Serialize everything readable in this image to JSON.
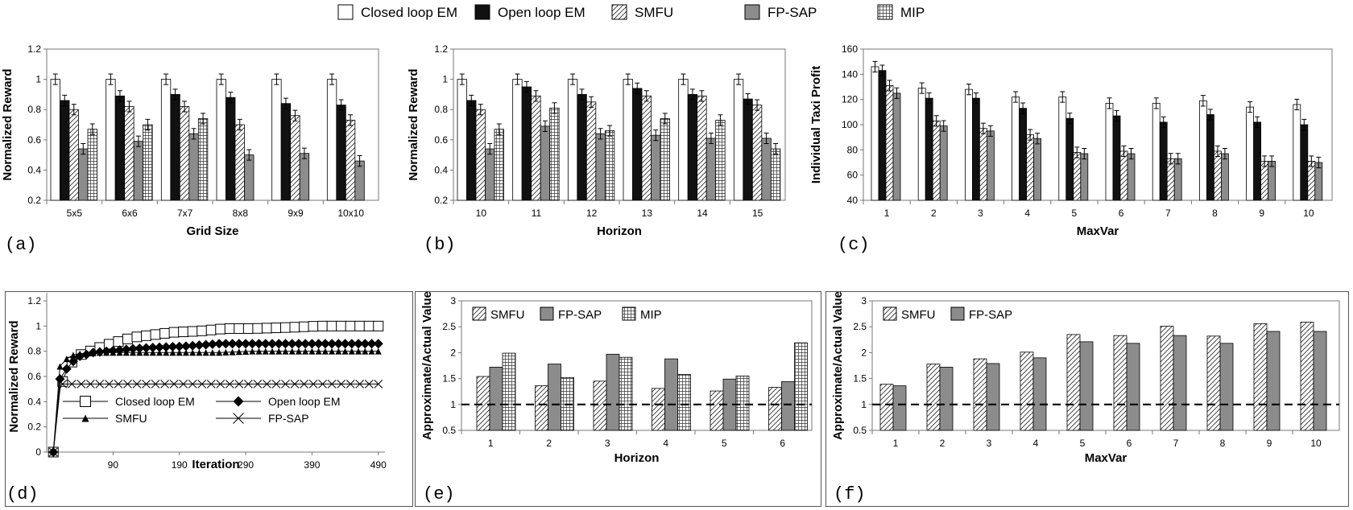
{
  "legend": {
    "items": [
      {
        "name": "Closed loop EM",
        "style": "white"
      },
      {
        "name": "Open loop EM",
        "style": "black"
      },
      {
        "name": "SMFU",
        "style": "hatch"
      },
      {
        "name": "FP-SAP",
        "style": "gray"
      },
      {
        "name": "MIP",
        "style": "grid"
      }
    ]
  },
  "colors": {
    "black": "#111111",
    "gray": "#8c8c8c",
    "white": "#ffffff",
    "axis": "#777777",
    "grid": "#bdbdbd"
  },
  "chart_data": [
    {
      "id": "a",
      "letter": "(a)",
      "type": "bar",
      "xlabel": "Grid Size",
      "ylabel": "Normalized Reward",
      "ylim": [
        0.2,
        1.2
      ],
      "yticks": [
        0.2,
        0.4,
        0.6,
        0.8,
        1,
        1.2
      ],
      "categories": [
        "5x5",
        "6x6",
        "7x7",
        "8x8",
        "9x9",
        "10x10"
      ],
      "error_bars": true,
      "series": [
        {
          "name": "Closed loop EM",
          "style": "white",
          "values": [
            1.0,
            1.0,
            1.0,
            1.0,
            1.0,
            1.0
          ]
        },
        {
          "name": "Open loop EM",
          "style": "black",
          "values": [
            0.86,
            0.89,
            0.9,
            0.88,
            0.84,
            0.83
          ]
        },
        {
          "name": "SMFU",
          "style": "hatch",
          "values": [
            0.8,
            0.82,
            0.82,
            0.7,
            0.76,
            0.73
          ]
        },
        {
          "name": "FP-SAP",
          "style": "gray",
          "values": [
            0.54,
            0.59,
            0.64,
            0.5,
            0.51,
            0.46
          ]
        },
        {
          "name": "MIP",
          "style": "grid",
          "values": [
            0.67,
            0.7,
            0.74,
            null,
            null,
            null
          ]
        }
      ]
    },
    {
      "id": "b",
      "letter": "(b)",
      "type": "bar",
      "xlabel": "Horizon",
      "ylabel": "Normalized Reward",
      "ylim": [
        0.2,
        1.2
      ],
      "yticks": [
        0.2,
        0.4,
        0.6,
        0.8,
        1,
        1.2
      ],
      "categories": [
        "10",
        "11",
        "12",
        "13",
        "14",
        "15"
      ],
      "error_bars": true,
      "series": [
        {
          "name": "Closed loop EM",
          "style": "white",
          "values": [
            1.0,
            1.0,
            1.0,
            1.0,
            1.0,
            1.0
          ]
        },
        {
          "name": "Open loop EM",
          "style": "black",
          "values": [
            0.86,
            0.95,
            0.9,
            0.94,
            0.9,
            0.87
          ]
        },
        {
          "name": "SMFU",
          "style": "hatch",
          "values": [
            0.8,
            0.89,
            0.85,
            0.89,
            0.89,
            0.83
          ]
        },
        {
          "name": "FP-SAP",
          "style": "gray",
          "values": [
            0.54,
            0.69,
            0.64,
            0.63,
            0.61,
            0.61
          ]
        },
        {
          "name": "MIP",
          "style": "grid",
          "values": [
            0.67,
            0.81,
            0.66,
            0.74,
            0.73,
            0.54
          ]
        }
      ]
    },
    {
      "id": "c",
      "letter": "(c)",
      "type": "bar",
      "xlabel": "MaxVar",
      "ylabel": "Individual Taxi Profit",
      "ylim": [
        40,
        160
      ],
      "yticks": [
        40,
        60,
        80,
        100,
        120,
        140,
        160
      ],
      "categories": [
        "1",
        "2",
        "3",
        "4",
        "5",
        "6",
        "7",
        "8",
        "9",
        "10"
      ],
      "error_bars": true,
      "series": [
        {
          "name": "Closed loop EM",
          "style": "white",
          "values": [
            146,
            129,
            128,
            122,
            122,
            117,
            117,
            119,
            114,
            116
          ]
        },
        {
          "name": "Open loop EM",
          "style": "black",
          "values": [
            143,
            121,
            121,
            113,
            105,
            107,
            102,
            108,
            102,
            100
          ]
        },
        {
          "name": "SMFU",
          "style": "hatch",
          "values": [
            131,
            103,
            97,
            92,
            78,
            79,
            73,
            79,
            71,
            71
          ]
        },
        {
          "name": "FP-SAP",
          "style": "gray",
          "values": [
            125,
            99,
            95,
            89,
            77,
            77,
            73,
            77,
            71,
            70
          ]
        }
      ]
    },
    {
      "id": "d",
      "letter": "(d)",
      "type": "line",
      "xlabel": "Iteration",
      "ylabel": "Normalized Reward",
      "ylim": [
        0,
        1.2
      ],
      "yticks": [
        0,
        0.2,
        0.4,
        0.6,
        0.8,
        1,
        1.2
      ],
      "xlim": [
        -10,
        500
      ],
      "xticks": [
        90,
        190,
        290,
        390,
        490
      ],
      "legend": [
        {
          "name": "Closed loop EM",
          "marker": "square"
        },
        {
          "name": "Open loop EM",
          "marker": "diamond"
        },
        {
          "name": "SMFU",
          "marker": "triangle"
        },
        {
          "name": "FP-SAP",
          "marker": "x"
        }
      ],
      "series": [
        {
          "name": "Closed loop EM",
          "marker": "square",
          "x": [
            0,
            10,
            20,
            30,
            40,
            60,
            80,
            100,
            120,
            150,
            180,
            220,
            260,
            300,
            360,
            400,
            450,
            490
          ],
          "y": [
            0,
            0.5,
            0.65,
            0.73,
            0.77,
            0.81,
            0.85,
            0.88,
            0.91,
            0.93,
            0.95,
            0.96,
            0.98,
            0.98,
            0.99,
            1.0,
            1.0,
            1.0
          ]
        },
        {
          "name": "Open loop EM",
          "marker": "diamond",
          "x": [
            0,
            10,
            20,
            30,
            40,
            60,
            80,
            100,
            120,
            150,
            200,
            250,
            300,
            350,
            400,
            450,
            490
          ],
          "y": [
            0,
            0.58,
            0.66,
            0.72,
            0.76,
            0.79,
            0.8,
            0.81,
            0.82,
            0.83,
            0.84,
            0.86,
            0.86,
            0.86,
            0.86,
            0.86,
            0.86
          ]
        },
        {
          "name": "SMFU",
          "marker": "triangle",
          "x": [
            0,
            10,
            20,
            30,
            40,
            60,
            80,
            100,
            150,
            200,
            250,
            300,
            350,
            400,
            450,
            490
          ],
          "y": [
            0,
            0.68,
            0.74,
            0.77,
            0.78,
            0.79,
            0.79,
            0.79,
            0.79,
            0.79,
            0.79,
            0.8,
            0.8,
            0.8,
            0.8,
            0.8
          ]
        },
        {
          "name": "FP-SAP",
          "marker": "x",
          "x": [
            0,
            10,
            20,
            40,
            60,
            80,
            100,
            150,
            200,
            250,
            300,
            350,
            400,
            450,
            490
          ],
          "y": [
            0,
            0.54,
            0.54,
            0.54,
            0.54,
            0.54,
            0.54,
            0.54,
            0.54,
            0.54,
            0.54,
            0.54,
            0.54,
            0.54,
            0.54
          ]
        }
      ]
    },
    {
      "id": "e",
      "letter": "(e)",
      "type": "bar",
      "xlabel": "Horizon",
      "ylabel": "Approximate/Actual Value",
      "ylim": [
        0.5,
        3
      ],
      "yticks": [
        0.5,
        1,
        1.5,
        2,
        2.5,
        3
      ],
      "categories": [
        "1",
        "2",
        "3",
        "4",
        "5",
        "6"
      ],
      "reference_line": 1,
      "legend_inside": true,
      "series": [
        {
          "name": "SMFU",
          "style": "hatch",
          "values": [
            1.54,
            1.36,
            1.45,
            1.31,
            1.26,
            1.33
          ]
        },
        {
          "name": "FP-SAP",
          "style": "gray",
          "values": [
            1.72,
            1.78,
            1.97,
            1.88,
            1.49,
            1.44
          ]
        },
        {
          "name": "MIP",
          "style": "grid",
          "values": [
            1.99,
            1.52,
            1.91,
            1.58,
            1.55,
            2.19
          ]
        }
      ]
    },
    {
      "id": "f",
      "letter": "(f)",
      "type": "bar",
      "xlabel": "MaxVar",
      "ylabel": "Approximate/Actual Value",
      "ylim": [
        0.5,
        3
      ],
      "yticks": [
        0.5,
        1,
        1.5,
        2,
        2.5,
        3
      ],
      "categories": [
        "1",
        "2",
        "3",
        "4",
        "5",
        "6",
        "7",
        "8",
        "9",
        "10"
      ],
      "reference_line": 1,
      "legend_inside": true,
      "series": [
        {
          "name": "SMFU",
          "style": "hatch",
          "values": [
            1.39,
            1.78,
            1.88,
            2.01,
            2.35,
            2.33,
            2.51,
            2.32,
            2.56,
            2.59
          ]
        },
        {
          "name": "FP-SAP",
          "style": "gray",
          "values": [
            1.36,
            1.72,
            1.79,
            1.9,
            2.21,
            2.18,
            2.33,
            2.18,
            2.41,
            2.41
          ]
        }
      ]
    }
  ]
}
